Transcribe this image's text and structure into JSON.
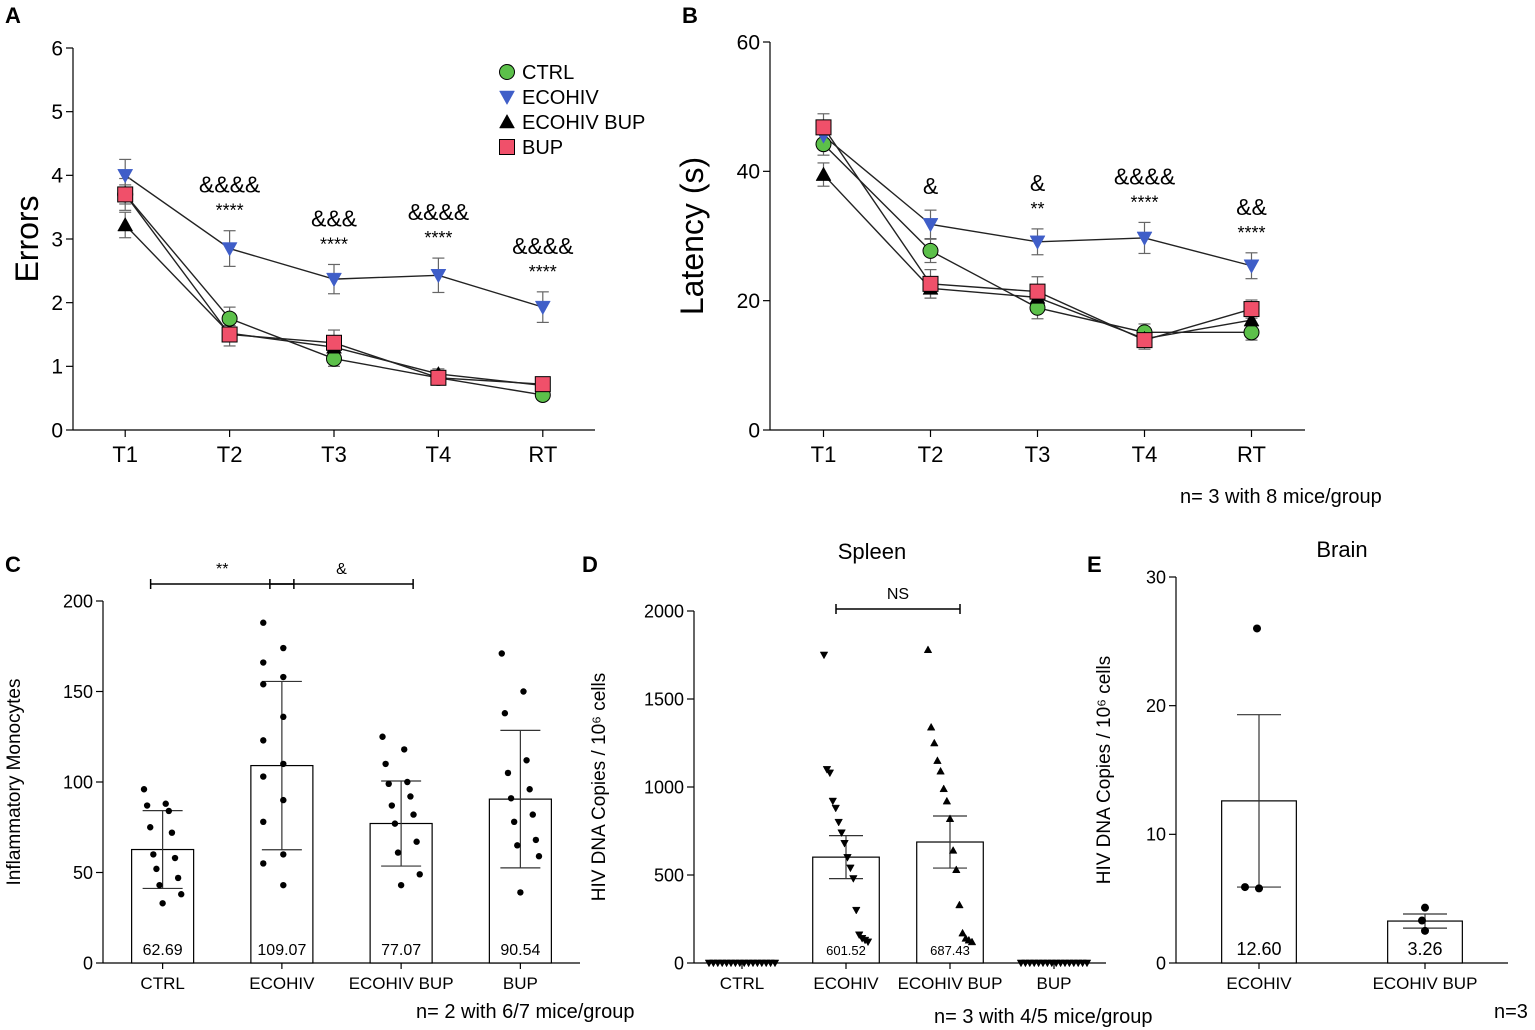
{
  "colors": {
    "ctrl": "#5cc04a",
    "ecohiv": "#3f5ec8",
    "ecohiv_bup": "#000000",
    "bup": "#f0506a"
  },
  "chart_data": [
    {
      "panel": "A",
      "type": "line",
      "categories": [
        "T1",
        "T2",
        "T3",
        "T4",
        "RT"
      ],
      "ylabel": "Errors",
      "ylim": [
        0,
        6
      ],
      "yticks": [
        "0",
        "1",
        "2",
        "3",
        "4",
        "5",
        "6"
      ],
      "legend_position": "top-right",
      "series": [
        {
          "name": "CTRL",
          "marker": "circle",
          "values": [
            3.7,
            1.75,
            1.12,
            0.82,
            0.55
          ],
          "err": [
            0.15,
            0.18,
            0.12,
            0.07,
            0.06
          ]
        },
        {
          "name": "ECOHIV",
          "marker": "triangle-down",
          "values": [
            4.0,
            2.85,
            2.37,
            2.43,
            1.93
          ],
          "err": [
            0.25,
            0.28,
            0.23,
            0.27,
            0.24
          ]
        },
        {
          "name": "ECOHIV BUP",
          "marker": "triangle-up",
          "values": [
            3.22,
            1.52,
            1.3,
            0.88,
            0.7
          ],
          "err": [
            0.2,
            0.12,
            0.12,
            0.08,
            0.07
          ]
        },
        {
          "name": "BUP",
          "marker": "square",
          "values": [
            3.7,
            1.5,
            1.37,
            0.82,
            0.72
          ],
          "err": [
            0.25,
            0.18,
            0.2,
            0.1,
            0.08
          ]
        }
      ],
      "annotations": [
        {
          "category": "T2",
          "top": "&&&&",
          "bottom": "****"
        },
        {
          "category": "T3",
          "top": "&&&",
          "bottom": "****"
        },
        {
          "category": "T4",
          "top": "&&&&",
          "bottom": "****"
        },
        {
          "category": "RT",
          "top": "&&&&",
          "bottom": "****"
        }
      ]
    },
    {
      "panel": "B",
      "type": "line",
      "categories": [
        "T1",
        "T2",
        "T3",
        "T4",
        "RT"
      ],
      "ylabel": "Latency (s)",
      "ylim": [
        0,
        60
      ],
      "yticks": [
        "0",
        "20",
        "40",
        "60"
      ],
      "footnote": "n= 3 with 8 mice/group",
      "series": [
        {
          "name": "CTRL",
          "marker": "circle",
          "values": [
            44.2,
            27.7,
            18.9,
            15.1,
            15.1
          ],
          "err": [
            1.7,
            1.8,
            1.7,
            1.3,
            1.2
          ]
        },
        {
          "name": "ECOHIV",
          "marker": "triangle-down",
          "values": [
            45.5,
            31.8,
            29.1,
            29.7,
            25.4
          ],
          "err": [
            2.0,
            2.2,
            2.0,
            2.4,
            2.0
          ]
        },
        {
          "name": "ECOHIV BUP",
          "marker": "triangle-up",
          "values": [
            39.5,
            21.9,
            20.5,
            14.1,
            17.0
          ],
          "err": [
            1.8,
            1.5,
            1.5,
            1.3,
            1.4
          ]
        },
        {
          "name": "BUP",
          "marker": "square",
          "values": [
            46.8,
            22.6,
            21.4,
            13.9,
            18.7
          ],
          "err": [
            2.1,
            2.2,
            2.3,
            1.4,
            1.4
          ]
        }
      ],
      "annotations": [
        {
          "category": "T2",
          "top": "&",
          "bottom": ""
        },
        {
          "category": "T3",
          "top": "&",
          "bottom": "**"
        },
        {
          "category": "T4",
          "top": "&&&&",
          "bottom": "****"
        },
        {
          "category": "RT",
          "top": "&&",
          "bottom": "****"
        }
      ]
    },
    {
      "panel": "C",
      "type": "bar",
      "categories": [
        "CTRL",
        "ECOHIV",
        "ECOHIV BUP",
        "BUP"
      ],
      "values": [
        62.69,
        109.07,
        77.07,
        90.54
      ],
      "value_labels": [
        "62.69",
        "109.07",
        "77.07",
        "90.54"
      ],
      "err": [
        21.5,
        46.5,
        23.5,
        38.0
      ],
      "ylabel": "Inflammatory Monocytes",
      "ylim": [
        0,
        200
      ],
      "yticks": [
        "0",
        "50",
        "100",
        "150",
        "200"
      ],
      "points": [
        [
          96,
          88,
          87,
          84,
          75,
          72,
          60,
          58,
          52,
          47,
          43,
          38,
          33
        ],
        [
          188,
          174,
          166,
          158,
          154,
          136,
          123,
          110,
          103,
          90,
          78,
          60,
          55,
          43
        ],
        [
          125,
          118,
          110,
          100,
          99,
          92,
          87,
          82,
          77,
          67,
          61,
          49,
          43
        ],
        [
          171,
          150,
          138,
          112,
          105,
          96,
          91,
          82,
          78,
          68,
          65,
          59,
          39
        ]
      ],
      "brackets": [
        {
          "from": "CTRL",
          "to": "ECOHIV",
          "label": "**"
        },
        {
          "from": "ECOHIV",
          "to": "ECOHIV BUP",
          "label": "&"
        }
      ],
      "footnote": "n= 2 with 6/7 mice/group"
    },
    {
      "panel": "D",
      "type": "bar",
      "title": "Spleen",
      "categories": [
        "CTRL",
        "ECOHIV",
        "ECOHIV BUP",
        "BUP"
      ],
      "values": [
        0,
        601.52,
        687.43,
        0
      ],
      "value_labels": [
        "",
        "601.52",
        "687.43",
        ""
      ],
      "err": [
        0,
        122,
        148,
        0
      ],
      "ylabel": "HIV DNA Copies / 10⁶ cells",
      "ylim": [
        0,
        2000
      ],
      "yticks": [
        "0",
        "500",
        "1000",
        "1500",
        "2000"
      ],
      "points": [
        [
          0,
          0,
          0,
          0,
          0,
          0,
          0,
          0,
          0,
          0,
          0,
          0,
          0,
          0,
          0,
          0
        ],
        [
          1750,
          1100,
          1080,
          920,
          880,
          800,
          740,
          680,
          600,
          540,
          480,
          300,
          160,
          140,
          130,
          120
        ],
        [
          1780,
          1340,
          1250,
          1150,
          1090,
          990,
          920,
          820,
          640,
          530,
          330,
          170,
          140,
          130,
          120
        ],
        [
          0,
          0,
          0,
          0,
          0,
          0,
          0,
          0,
          0,
          0,
          0,
          0,
          0,
          0,
          0,
          0
        ]
      ],
      "point_markers": [
        "triangle-down",
        "triangle-down",
        "triangle-up",
        "triangle-down"
      ],
      "brackets": [
        {
          "from": "ECOHIV",
          "to": "ECOHIV BUP",
          "label": "NS"
        }
      ],
      "footnote": "n= 3 with 4/5 mice/group"
    },
    {
      "panel": "E",
      "type": "bar",
      "title": "Brain",
      "categories": [
        "ECOHIV",
        "ECOHIV BUP"
      ],
      "values": [
        12.6,
        3.26
      ],
      "value_labels": [
        "12.60",
        "3.26"
      ],
      "err": [
        6.7,
        0.55
      ],
      "ylabel": "HIV DNA Copies / 10⁶ cells",
      "ylim": [
        0,
        30
      ],
      "yticks": [
        "0",
        "10",
        "20",
        "30"
      ],
      "points": [
        [
          26.0,
          5.9,
          5.8
        ],
        [
          4.3,
          3.3,
          2.5
        ]
      ],
      "footnote": "n=3"
    }
  ]
}
